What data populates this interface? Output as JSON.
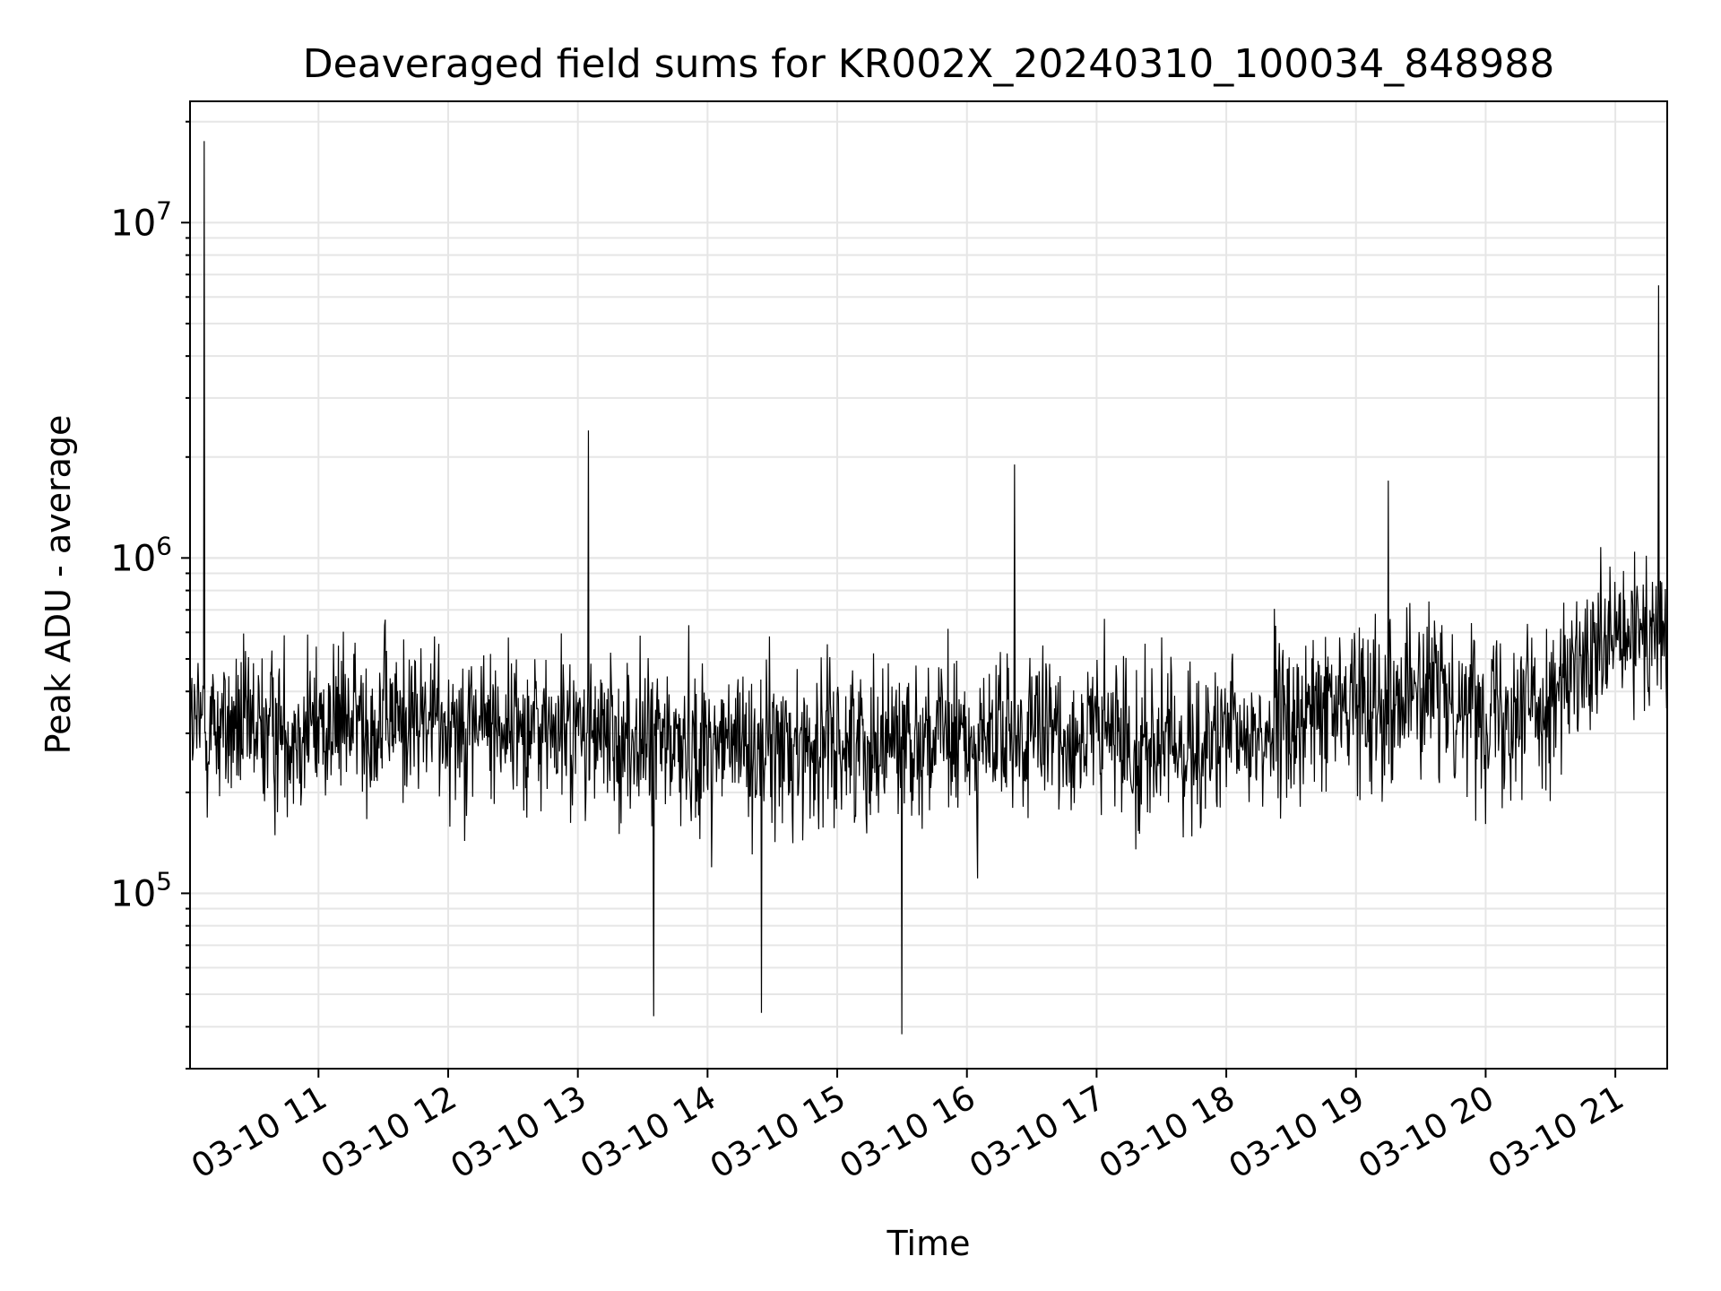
{
  "chart_data": {
    "type": "line",
    "title": "Deaveraged field sums for KR002X_20240310_100034_848988",
    "xlabel": "Time",
    "ylabel": "Peak ADU - average",
    "yscale": "log",
    "ylim": [
      30000,
      23000000
    ],
    "xlim": [
      "2024-03-10 10:00:34",
      "2024-03-10 21:24:00"
    ],
    "x_ticks": [
      "03-10 11",
      "03-10 12",
      "03-10 13",
      "03-10 14",
      "03-10 15",
      "03-10 16",
      "03-10 17",
      "03-10 18",
      "03-10 19",
      "03-10 20",
      "03-10 21"
    ],
    "y_ticks": [
      {
        "base": "10",
        "exp": "5",
        "value": 100000
      },
      {
        "base": "10",
        "exp": "6",
        "value": 1000000
      },
      {
        "base": "10",
        "exp": "7",
        "value": 10000000
      }
    ],
    "grid": true,
    "line_color": "#000000",
    "series": [
      {
        "x": [
          "2024-03-10 10:00",
          "2024-03-10 10:07",
          "2024-03-10 10:30",
          "2024-03-10 11:00",
          "2024-03-10 11:30",
          "2024-03-10 12:00",
          "2024-03-10 12:30",
          "2024-03-10 13:00",
          "2024-03-10 13:30",
          "2024-03-10 14:00",
          "2024-03-10 14:30",
          "2024-03-10 15:00",
          "2024-03-10 15:30",
          "2024-03-10 16:00",
          "2024-03-10 16:30",
          "2024-03-10 17:00",
          "2024-03-10 17:30",
          "2024-03-10 18:00",
          "2024-03-10 18:30",
          "2024-03-10 19:00",
          "2024-03-10 19:30",
          "2024-03-10 20:00",
          "2024-03-10 20:30",
          "2024-03-10 21:00",
          "2024-03-10 21:20"
        ],
        "y": [
          300000,
          320000,
          300000,
          320000,
          330000,
          330000,
          320000,
          300000,
          280000,
          280000,
          270000,
          280000,
          300000,
          280000,
          290000,
          300000,
          270000,
          280000,
          320000,
          380000,
          400000,
          360000,
          380000,
          550000,
          600000
        ],
        "spikes": [
          {
            "x": "2024-03-10 10:07",
            "y": 17500000
          },
          {
            "x": "2024-03-10 13:05",
            "y": 2400000
          },
          {
            "x": "2024-03-10 16:22",
            "y": 1900000
          },
          {
            "x": "2024-03-10 19:15",
            "y": 1700000
          },
          {
            "x": "2024-03-10 21:20",
            "y": 6500000
          },
          {
            "x": "2024-03-10 15:30",
            "y": 38000
          },
          {
            "x": "2024-03-10 14:25",
            "y": 44000
          },
          {
            "x": "2024-03-10 13:35",
            "y": 43000
          }
        ]
      }
    ]
  }
}
